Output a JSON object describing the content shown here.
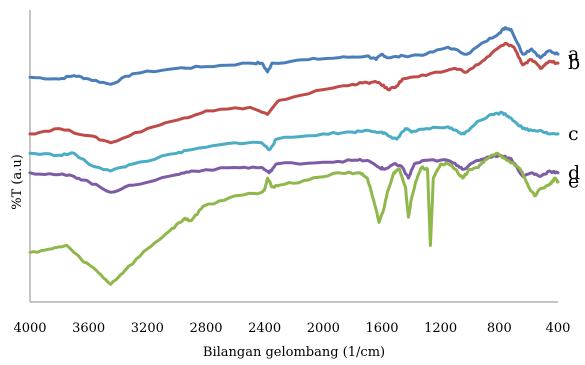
{
  "chart_data": {
    "type": "line",
    "title": "",
    "xlabel": "Bilangan gelombang (1/cm)",
    "ylabel": "%T (a.u)",
    "xlim": [
      4000,
      400
    ],
    "x_ticks": [
      "4000",
      "3600",
      "3200",
      "2800",
      "2400",
      "2000",
      "1600",
      "1200",
      "800",
      "400"
    ],
    "grid": false,
    "series": [
      {
        "name": "a",
        "color": "#4a7ebb",
        "points": [
          [
            4000,
            87
          ],
          [
            3800,
            86
          ],
          [
            3700,
            88
          ],
          [
            3600,
            86
          ],
          [
            3450,
            83
          ],
          [
            3300,
            89
          ],
          [
            3000,
            92
          ],
          [
            2800,
            93
          ],
          [
            2500,
            95
          ],
          [
            2420,
            95
          ],
          [
            2380,
            90
          ],
          [
            2350,
            95
          ],
          [
            2100,
            97
          ],
          [
            1900,
            98
          ],
          [
            1700,
            99
          ],
          [
            1640,
            97
          ],
          [
            1600,
            100
          ],
          [
            1560,
            98
          ],
          [
            1450,
            99
          ],
          [
            1300,
            100
          ],
          [
            1150,
            104
          ],
          [
            1020,
            100
          ],
          [
            900,
            107
          ],
          [
            800,
            112
          ],
          [
            760,
            115
          ],
          [
            720,
            114
          ],
          [
            640,
            100
          ],
          [
            580,
            103
          ],
          [
            520,
            98
          ],
          [
            460,
            102
          ],
          [
            400,
            100
          ]
        ]
      },
      {
        "name": "b",
        "color": "#be4b48",
        "points": [
          [
            4000,
            55
          ],
          [
            3800,
            58
          ],
          [
            3600,
            54
          ],
          [
            3450,
            50
          ],
          [
            3200,
            58
          ],
          [
            2950,
            64
          ],
          [
            2800,
            68
          ],
          [
            2500,
            70
          ],
          [
            2380,
            66
          ],
          [
            2300,
            74
          ],
          [
            2000,
            80
          ],
          [
            1800,
            83
          ],
          [
            1700,
            84
          ],
          [
            1620,
            84
          ],
          [
            1560,
            80
          ],
          [
            1500,
            82
          ],
          [
            1460,
            86
          ],
          [
            1300,
            88
          ],
          [
            1100,
            92
          ],
          [
            1020,
            90
          ],
          [
            900,
            97
          ],
          [
            800,
            104
          ],
          [
            750,
            106
          ],
          [
            700,
            104
          ],
          [
            640,
            94
          ],
          [
            580,
            97
          ],
          [
            520,
            92
          ],
          [
            460,
            96
          ],
          [
            400,
            95
          ]
        ]
      },
      {
        "name": "c",
        "color": "#4bacc6",
        "points": [
          [
            4000,
            44
          ],
          [
            3800,
            43
          ],
          [
            3700,
            44
          ],
          [
            3600,
            38
          ],
          [
            3450,
            34
          ],
          [
            3300,
            38
          ],
          [
            3000,
            44
          ],
          [
            2900,
            46
          ],
          [
            2600,
            50
          ],
          [
            2420,
            50
          ],
          [
            2370,
            46
          ],
          [
            2320,
            52
          ],
          [
            2000,
            55
          ],
          [
            1800,
            56
          ],
          [
            1700,
            57
          ],
          [
            1600,
            56
          ],
          [
            1560,
            54
          ],
          [
            1500,
            52
          ],
          [
            1440,
            58
          ],
          [
            1400,
            56
          ],
          [
            1300,
            58
          ],
          [
            1150,
            59
          ],
          [
            1080,
            56
          ],
          [
            1040,
            55
          ],
          [
            950,
            62
          ],
          [
            850,
            66
          ],
          [
            780,
            67
          ],
          [
            720,
            64
          ],
          [
            640,
            58
          ],
          [
            580,
            57
          ],
          [
            520,
            57
          ],
          [
            460,
            55
          ],
          [
            400,
            55
          ]
        ]
      },
      {
        "name": "d",
        "color": "#7d5ba6",
        "points": [
          [
            4000,
            33
          ],
          [
            3800,
            32
          ],
          [
            3700,
            31
          ],
          [
            3600,
            28
          ],
          [
            3450,
            22
          ],
          [
            3300,
            26
          ],
          [
            3000,
            32
          ],
          [
            2900,
            34
          ],
          [
            2600,
            36
          ],
          [
            2420,
            36
          ],
          [
            2370,
            33
          ],
          [
            2320,
            38
          ],
          [
            2000,
            39
          ],
          [
            1800,
            40
          ],
          [
            1700,
            40
          ],
          [
            1620,
            36
          ],
          [
            1580,
            35
          ],
          [
            1520,
            38
          ],
          [
            1460,
            36
          ],
          [
            1420,
            30
          ],
          [
            1380,
            38
          ],
          [
            1300,
            40
          ],
          [
            1150,
            40
          ],
          [
            1080,
            37
          ],
          [
            1040,
            35
          ],
          [
            950,
            40
          ],
          [
            870,
            42
          ],
          [
            800,
            43
          ],
          [
            720,
            41
          ],
          [
            640,
            31
          ],
          [
            580,
            33
          ],
          [
            520,
            31
          ],
          [
            460,
            34
          ],
          [
            400,
            33
          ]
        ]
      },
      {
        "name": "e",
        "color": "#8fb74a",
        "points": [
          [
            4000,
            -12
          ],
          [
            3850,
            -10
          ],
          [
            3750,
            -8
          ],
          [
            3650,
            -16
          ],
          [
            3550,
            -22
          ],
          [
            3450,
            -30
          ],
          [
            3350,
            -22
          ],
          [
            3200,
            -10
          ],
          [
            3050,
            0
          ],
          [
            2950,
            7
          ],
          [
            2900,
            6
          ],
          [
            2820,
            14
          ],
          [
            2600,
            20
          ],
          [
            2420,
            22
          ],
          [
            2400,
            24
          ],
          [
            2380,
            30
          ],
          [
            2350,
            25
          ],
          [
            2300,
            26
          ],
          [
            2100,
            29
          ],
          [
            1900,
            33
          ],
          [
            1750,
            33
          ],
          [
            1700,
            30
          ],
          [
            1650,
            15
          ],
          [
            1620,
            5
          ],
          [
            1590,
            12
          ],
          [
            1560,
            23
          ],
          [
            1520,
            33
          ],
          [
            1480,
            35
          ],
          [
            1440,
            25
          ],
          [
            1420,
            8
          ],
          [
            1400,
            18
          ],
          [
            1370,
            28
          ],
          [
            1330,
            36
          ],
          [
            1290,
            35
          ],
          [
            1270,
            -8
          ],
          [
            1250,
            30
          ],
          [
            1200,
            38
          ],
          [
            1150,
            38
          ],
          [
            1100,
            35
          ],
          [
            1050,
            30
          ],
          [
            1000,
            35
          ],
          [
            950,
            36
          ],
          [
            900,
            40
          ],
          [
            820,
            44
          ],
          [
            760,
            41
          ],
          [
            700,
            38
          ],
          [
            650,
            34
          ],
          [
            600,
            25
          ],
          [
            560,
            20
          ],
          [
            520,
            24
          ],
          [
            460,
            26
          ],
          [
            420,
            30
          ],
          [
            400,
            28
          ]
        ]
      }
    ]
  }
}
